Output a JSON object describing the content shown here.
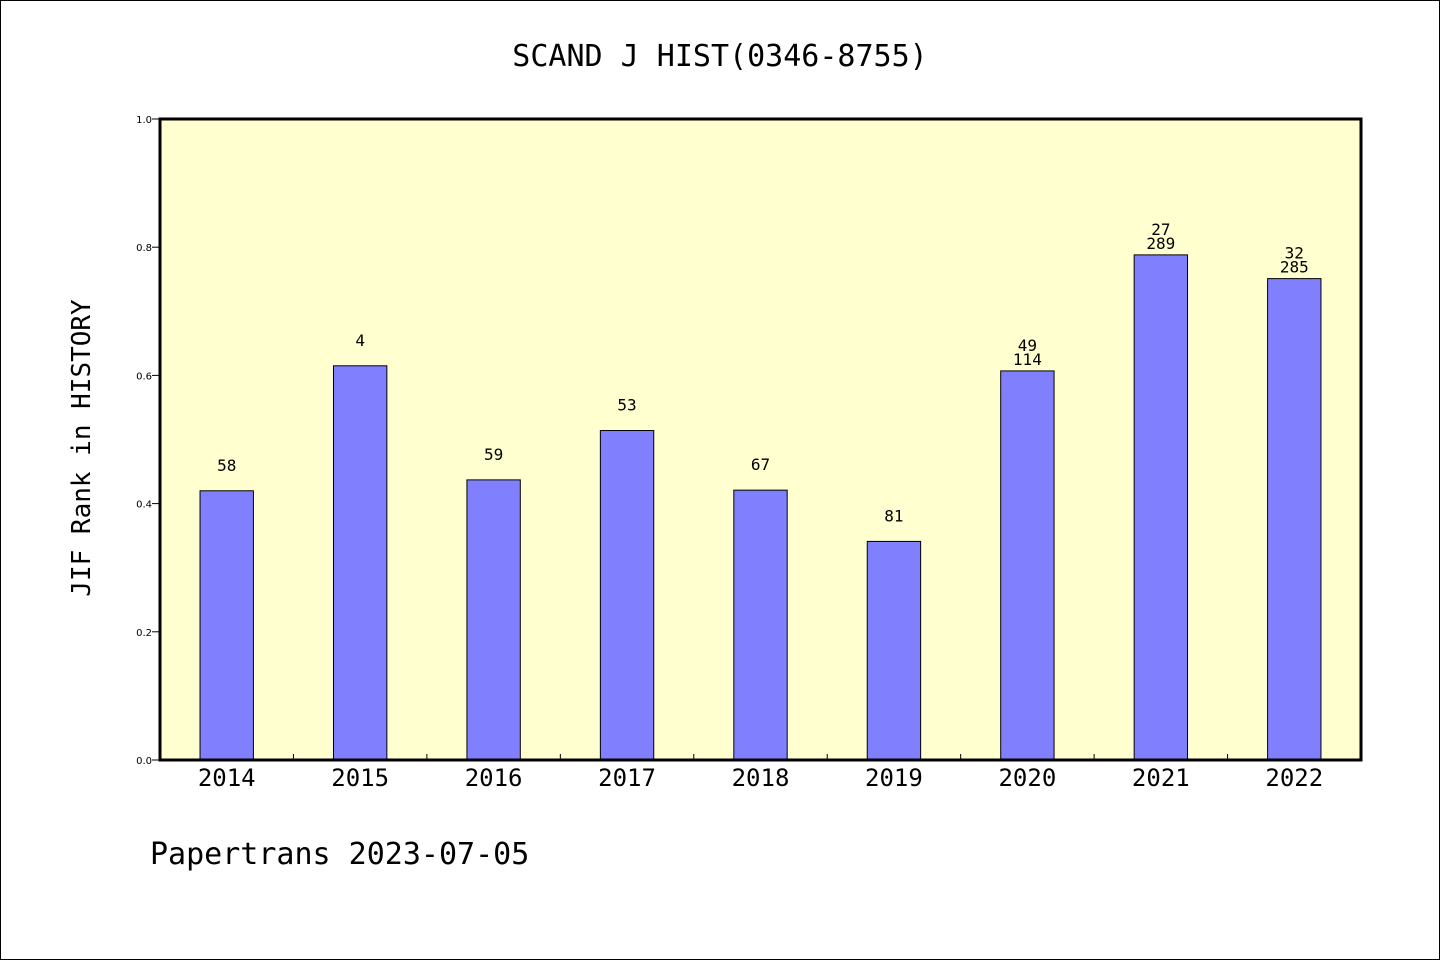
{
  "chart_data": {
    "type": "bar",
    "title": "SCAND J HIST(0346-8755)",
    "ylabel": "JIF Rank in HISTORY",
    "xlabel": "",
    "ylim": [
      0.0,
      1.0
    ],
    "yticks": [
      "0.0",
      "0.2",
      "0.4",
      "0.6",
      "0.8",
      "1.0"
    ],
    "categories": [
      "2014",
      "2015",
      "2016",
      "2017",
      "2018",
      "2019",
      "2020",
      "2021",
      "2022"
    ],
    "values": [
      0.42,
      0.615,
      0.437,
      0.514,
      0.421,
      0.341,
      0.607,
      0.788,
      0.751
    ],
    "rank_labels": [
      "58",
      "4",
      "59",
      "53",
      "67",
      "81",
      "49",
      "27",
      "32"
    ],
    "total_labels": [
      "",
      "",
      "",
      "",
      "",
      "",
      "114",
      "289",
      "285"
    ],
    "grid": false,
    "colors": {
      "plot_bg": "#ffffd0",
      "bar": "#8080ff",
      "bar_edge": "#000000"
    }
  },
  "footer": {
    "text": "Papertrans 2023-07-05"
  }
}
